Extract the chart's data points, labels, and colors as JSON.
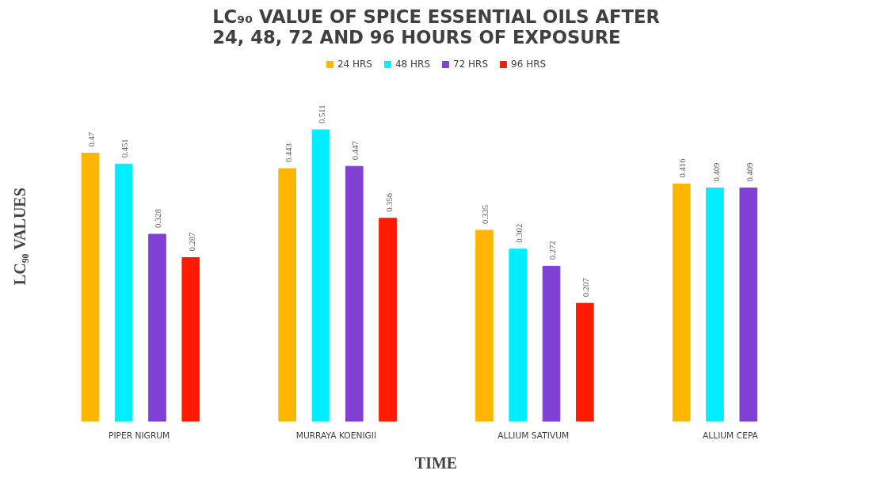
{
  "chart_data": {
    "type": "bar",
    "title": "LC₉₀ VALUE OF SPICE ESSENTIAL OILS AFTER 24, 48, 72 AND 96 HOURS OF EXPOSURE",
    "xlabel": "TIME",
    "ylabel": "LC₉₀ VALUES",
    "categories": [
      "PIPER  NIGRUM",
      "MURRAYA  KOENIGII",
      "ALLIUM  SATIVUM",
      "ALLIUM  CEPA"
    ],
    "series": [
      {
        "name": "24 HRS",
        "color": "#ffb600",
        "values": [
          0.47,
          0.443,
          0.335,
          0.416
        ]
      },
      {
        "name": "48 HRS",
        "color": "#00eeff",
        "values": [
          0.451,
          0.511,
          0.302,
          0.409
        ]
      },
      {
        "name": "72 HRS",
        "color": "#8040d4",
        "values": [
          0.328,
          0.447,
          0.272,
          0.409
        ]
      },
      {
        "name": "96 HRS",
        "color": "#ff1a00",
        "values": [
          0.287,
          0.356,
          0.207,
          null
        ]
      }
    ],
    "data_labels": true,
    "legend": "top",
    "grid": false,
    "tick_labels": "x"
  }
}
